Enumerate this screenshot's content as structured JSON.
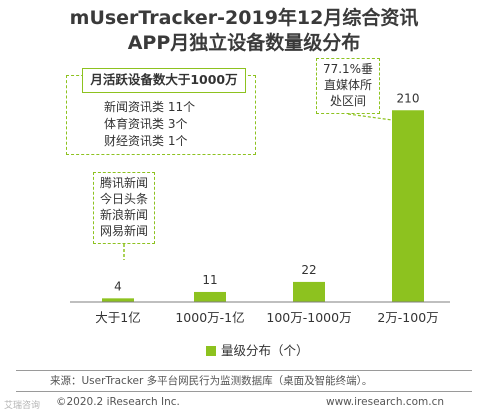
{
  "title_line1": "mUserTracker-2019年12月综合资讯",
  "title_line2": "APP月独立设备数量级分布",
  "annotation_top": {
    "header": "月活跃设备数大于1000万",
    "lines": [
      "新闻资讯类 11个",
      "体育资讯类 3个",
      "财经资讯类 1个"
    ]
  },
  "annotation_apps": {
    "lines": [
      "腾讯新闻",
      "今日头条",
      "新浪新闻",
      "网易新闻"
    ]
  },
  "annotation_right": {
    "lines": [
      "77.1%垂",
      "直媒体所",
      "处区间"
    ]
  },
  "legend_label": "量级分布（个）",
  "footer": {
    "source": "来源：UserTracker 多平台网民行为监测数据库（桌面及智能终端）。",
    "copyright": "©2020.2 iResearch Inc.",
    "website": "www.iresearch.com.cn",
    "watermark": "艾瑞咨询"
  },
  "colors": {
    "bar": "#8dc21f",
    "axis": "#7f7f7f"
  },
  "chart_data": {
    "type": "bar",
    "categories": [
      "大于1亿",
      "1000万-1亿",
      "100万-1000万",
      "2万-100万"
    ],
    "series": [
      {
        "name": "量级分布（个）",
        "values": [
          4,
          11,
          22,
          210
        ]
      }
    ],
    "value_labels": [
      "4",
      "11",
      "22",
      "210"
    ],
    "title": "mUserTracker-2019年12月综合资讯APP月独立设备数量级分布",
    "ylim": [
      0,
      230
    ],
    "grid": false,
    "legend_position": "bottom"
  }
}
